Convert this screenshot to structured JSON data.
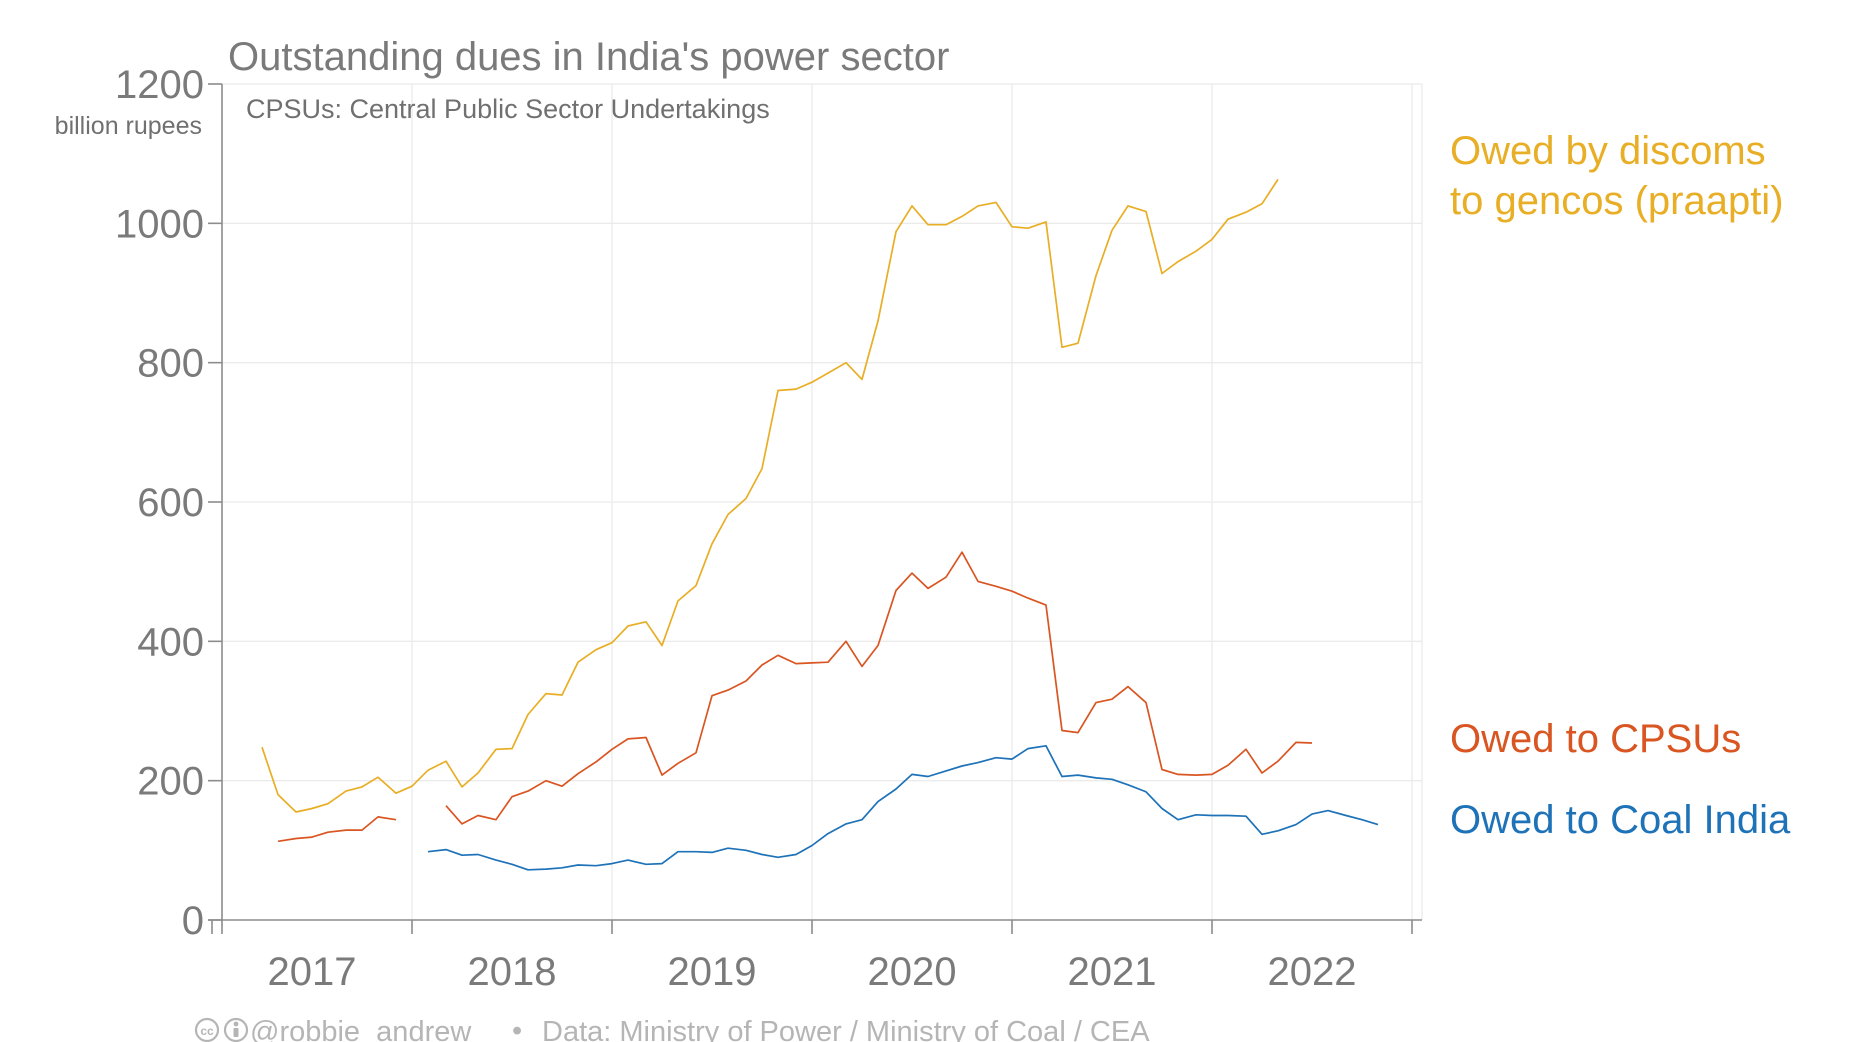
{
  "chart_data": {
    "type": "line",
    "title": "Outstanding dues in India's power sector",
    "subtitle": "CPSUs: Central Public Sector Undertakings",
    "ylabel": "billion rupees",
    "ylim": [
      0,
      1200
    ],
    "yticks": [
      0,
      200,
      400,
      600,
      800,
      1000,
      1200
    ],
    "xlim": [
      2016.55,
      2022.55
    ],
    "xticks": [
      2016.5,
      2017.5,
      2018.5,
      2019.5,
      2020.5,
      2021.5,
      2022.5
    ],
    "xtick_labels": [
      {
        "label": "2017",
        "x": 2017.0
      },
      {
        "label": "2018",
        "x": 2018.0
      },
      {
        "label": "2019",
        "x": 2019.0
      },
      {
        "label": "2020",
        "x": 2020.0
      },
      {
        "label": "2021",
        "x": 2021.0
      },
      {
        "label": "2022",
        "x": 2022.0
      }
    ],
    "grid": true,
    "series": [
      {
        "name": "Owed by discoms to gencos (praapti)",
        "legend_lines": [
          "Owed by discoms",
          "to gencos (praapti)"
        ],
        "color": "#e8ae25",
        "points": [
          [
            [
              2016.75,
              248
            ],
            [
              2016.83,
              180
            ],
            [
              2016.92,
              155
            ],
            [
              2017.0,
              160
            ],
            [
              2017.08,
              167
            ],
            [
              2017.17,
              185
            ],
            [
              2017.25,
              191
            ],
            [
              2017.33,
              205
            ],
            [
              2017.42,
              182
            ],
            [
              2017.5,
              192
            ],
            [
              2017.58,
              215
            ],
            [
              2017.67,
              228
            ],
            [
              2017.75,
              191
            ],
            [
              2017.83,
              211
            ],
            [
              2017.92,
              245
            ],
            [
              2018.0,
              246
            ],
            [
              2018.08,
              295
            ],
            [
              2018.17,
              325
            ],
            [
              2018.25,
              323
            ],
            [
              2018.33,
              370
            ],
            [
              2018.42,
              388
            ],
            [
              2018.5,
              398
            ],
            [
              2018.58,
              422
            ],
            [
              2018.67,
              428
            ],
            [
              2018.75,
              394
            ],
            [
              2018.83,
              458
            ],
            [
              2018.92,
              480
            ],
            [
              2019.0,
              540
            ],
            [
              2019.08,
              582
            ],
            [
              2019.17,
              605
            ],
            [
              2019.25,
              648
            ],
            [
              2019.33,
              760
            ],
            [
              2019.42,
              762
            ],
            [
              2019.5,
              772
            ],
            [
              2019.58,
              785
            ],
            [
              2019.67,
              800
            ],
            [
              2019.75,
              776
            ],
            [
              2019.83,
              860
            ],
            [
              2019.92,
              988
            ],
            [
              2020.0,
              1025
            ],
            [
              2020.08,
              998
            ],
            [
              2020.17,
              998
            ],
            [
              2020.25,
              1010
            ],
            [
              2020.33,
              1025
            ],
            [
              2020.42,
              1030
            ],
            [
              2020.5,
              995
            ],
            [
              2020.58,
              993
            ],
            [
              2020.67,
              1002
            ],
            [
              2020.75,
              822
            ],
            [
              2020.83,
              828
            ],
            [
              2020.92,
              925
            ],
            [
              2021.0,
              990
            ],
            [
              2021.08,
              1025
            ],
            [
              2021.17,
              1017
            ],
            [
              2021.25,
              928
            ],
            [
              2021.33,
              945
            ],
            [
              2021.42,
              960
            ],
            [
              2021.5,
              977
            ],
            [
              2021.58,
              1006
            ],
            [
              2021.67,
              1016
            ],
            [
              2021.75,
              1028
            ],
            [
              2021.83,
              1063
            ]
          ]
        ]
      },
      {
        "name": "Owed to CPSUs",
        "legend_lines": [
          "Owed to CPSUs"
        ],
        "color": "#d95521",
        "points": [
          [
            [
              2016.83,
              113
            ],
            [
              2016.92,
              117
            ],
            [
              2017.0,
              119
            ],
            [
              2017.08,
              126
            ],
            [
              2017.17,
              129
            ],
            [
              2017.25,
              129
            ],
            [
              2017.33,
              148
            ],
            [
              2017.42,
              144
            ]
          ],
          [
            [
              2017.67,
              164
            ],
            [
              2017.75,
              138
            ],
            [
              2017.83,
              150
            ],
            [
              2017.92,
              144
            ],
            [
              2018.0,
              177
            ],
            [
              2018.08,
              185
            ],
            [
              2018.17,
              200
            ],
            [
              2018.25,
              192
            ],
            [
              2018.33,
              210
            ],
            [
              2018.42,
              227
            ],
            [
              2018.5,
              245
            ],
            [
              2018.58,
              260
            ],
            [
              2018.67,
              262
            ],
            [
              2018.75,
              208
            ],
            [
              2018.83,
              225
            ],
            [
              2018.92,
              240
            ],
            [
              2019.0,
              322
            ],
            [
              2019.08,
              330
            ],
            [
              2019.17,
              343
            ],
            [
              2019.25,
              366
            ],
            [
              2019.33,
              380
            ],
            [
              2019.42,
              368
            ],
            [
              2019.5,
              369
            ],
            [
              2019.58,
              370
            ],
            [
              2019.67,
              400
            ],
            [
              2019.75,
              364
            ],
            [
              2019.83,
              394
            ],
            [
              2019.92,
              473
            ],
            [
              2020.0,
              498
            ],
            [
              2020.08,
              476
            ],
            [
              2020.17,
              492
            ],
            [
              2020.25,
              528
            ],
            [
              2020.33,
              486
            ],
            [
              2020.42,
              479
            ],
            [
              2020.5,
              472
            ],
            [
              2020.58,
              462
            ],
            [
              2020.67,
              452
            ],
            [
              2020.75,
              272
            ],
            [
              2020.83,
              269
            ],
            [
              2020.92,
              312
            ],
            [
              2021.0,
              317
            ],
            [
              2021.08,
              335
            ],
            [
              2021.17,
              312
            ],
            [
              2021.25,
              216
            ],
            [
              2021.33,
              209
            ],
            [
              2021.42,
              208
            ],
            [
              2021.5,
              209
            ],
            [
              2021.58,
              222
            ],
            [
              2021.67,
              245
            ],
            [
              2021.75,
              211
            ],
            [
              2021.83,
              228
            ],
            [
              2021.92,
              255
            ],
            [
              2022.0,
              254
            ]
          ]
        ]
      },
      {
        "name": "Owed to Coal India",
        "legend_lines": [
          "Owed to Coal India"
        ],
        "color": "#1d72b8",
        "points": [
          [
            [
              2017.58,
              98
            ],
            [
              2017.67,
              101
            ],
            [
              2017.75,
              93
            ],
            [
              2017.83,
              94
            ],
            [
              2017.92,
              86
            ],
            [
              2018.0,
              80
            ],
            [
              2018.08,
              72
            ],
            [
              2018.17,
              73
            ],
            [
              2018.25,
              75
            ],
            [
              2018.33,
              79
            ],
            [
              2018.42,
              78
            ],
            [
              2018.5,
              81
            ],
            [
              2018.58,
              86
            ],
            [
              2018.67,
              80
            ],
            [
              2018.75,
              81
            ],
            [
              2018.83,
              98
            ],
            [
              2018.92,
              98
            ],
            [
              2019.0,
              97
            ],
            [
              2019.08,
              103
            ],
            [
              2019.17,
              100
            ],
            [
              2019.25,
              94
            ],
            [
              2019.33,
              90
            ],
            [
              2019.42,
              94
            ],
            [
              2019.5,
              107
            ],
            [
              2019.58,
              124
            ],
            [
              2019.67,
              138
            ],
            [
              2019.75,
              144
            ],
            [
              2019.83,
              170
            ],
            [
              2019.92,
              188
            ],
            [
              2020.0,
              209
            ],
            [
              2020.08,
              206
            ],
            [
              2020.17,
              214
            ],
            [
              2020.25,
              221
            ],
            [
              2020.33,
              226
            ],
            [
              2020.42,
              233
            ],
            [
              2020.5,
              231
            ],
            [
              2020.58,
              246
            ],
            [
              2020.67,
              250
            ],
            [
              2020.75,
              206
            ],
            [
              2020.83,
              208
            ],
            [
              2020.92,
              204
            ],
            [
              2021.0,
              202
            ],
            [
              2021.08,
              194
            ],
            [
              2021.17,
              184
            ],
            [
              2021.25,
              160
            ],
            [
              2021.33,
              144
            ],
            [
              2021.42,
              151
            ],
            [
              2021.5,
              150
            ],
            [
              2021.58,
              150
            ],
            [
              2021.67,
              149
            ],
            [
              2021.75,
              123
            ],
            [
              2021.83,
              128
            ],
            [
              2021.92,
              137
            ],
            [
              2022.0,
              152
            ],
            [
              2022.08,
              157
            ],
            [
              2022.17,
              150
            ],
            [
              2022.25,
              144
            ],
            [
              2022.33,
              137
            ]
          ]
        ]
      }
    ]
  },
  "footer": {
    "credit": "@robbie_andrew",
    "separator": "•",
    "source": "Data: Ministry of Power / Ministry of Coal / CEA"
  }
}
